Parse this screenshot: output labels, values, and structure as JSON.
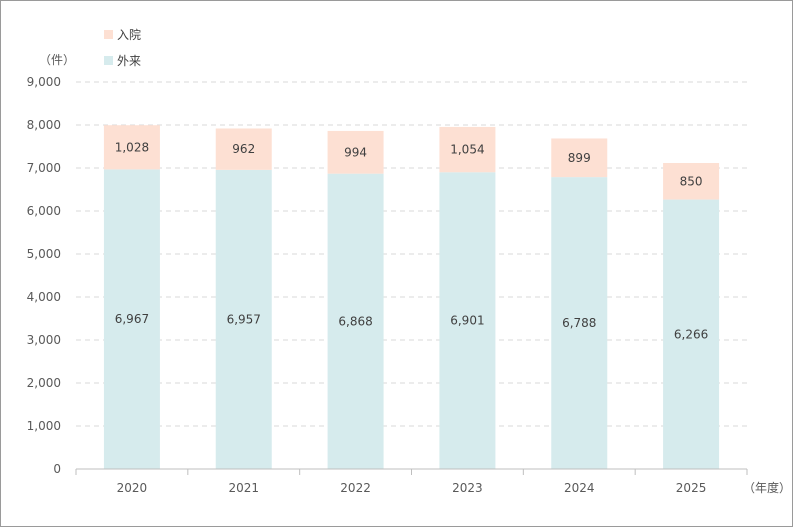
{
  "chart_data": {
    "type": "bar",
    "stacked": true,
    "categories": [
      "2020",
      "2021",
      "2022",
      "2023",
      "2024",
      "2025"
    ],
    "series": [
      {
        "name": "外来",
        "values": [
          6967,
          6957,
          6868,
          6901,
          6788,
          6266
        ],
        "color": "#d6ebed",
        "labels": [
          "6,967",
          "6,957",
          "6,868",
          "6,901",
          "6,788",
          "6,266"
        ]
      },
      {
        "name": "入院",
        "values": [
          1028,
          962,
          994,
          1054,
          899,
          850
        ],
        "color": "#fde0d3",
        "labels": [
          "1,028",
          "962",
          "994",
          "1,054",
          "899",
          "850"
        ]
      }
    ],
    "legend_order": [
      1,
      0
    ],
    "legend_position": "top-left",
    "y_unit": "（件）",
    "x_unit": "（年度）",
    "ylim": [
      0,
      9000
    ],
    "yticks": [
      0,
      1000,
      2000,
      3000,
      4000,
      5000,
      6000,
      7000,
      8000,
      9000
    ],
    "ytick_labels": [
      "0",
      "1,000",
      "2,000",
      "3,000",
      "4,000",
      "5,000",
      "6,000",
      "7,000",
      "8,000",
      "9,000"
    ],
    "grid": {
      "y": true,
      "style": "dashed"
    },
    "axis_color": "#bfbfbf",
    "grid_color": "#d9d9d9"
  }
}
